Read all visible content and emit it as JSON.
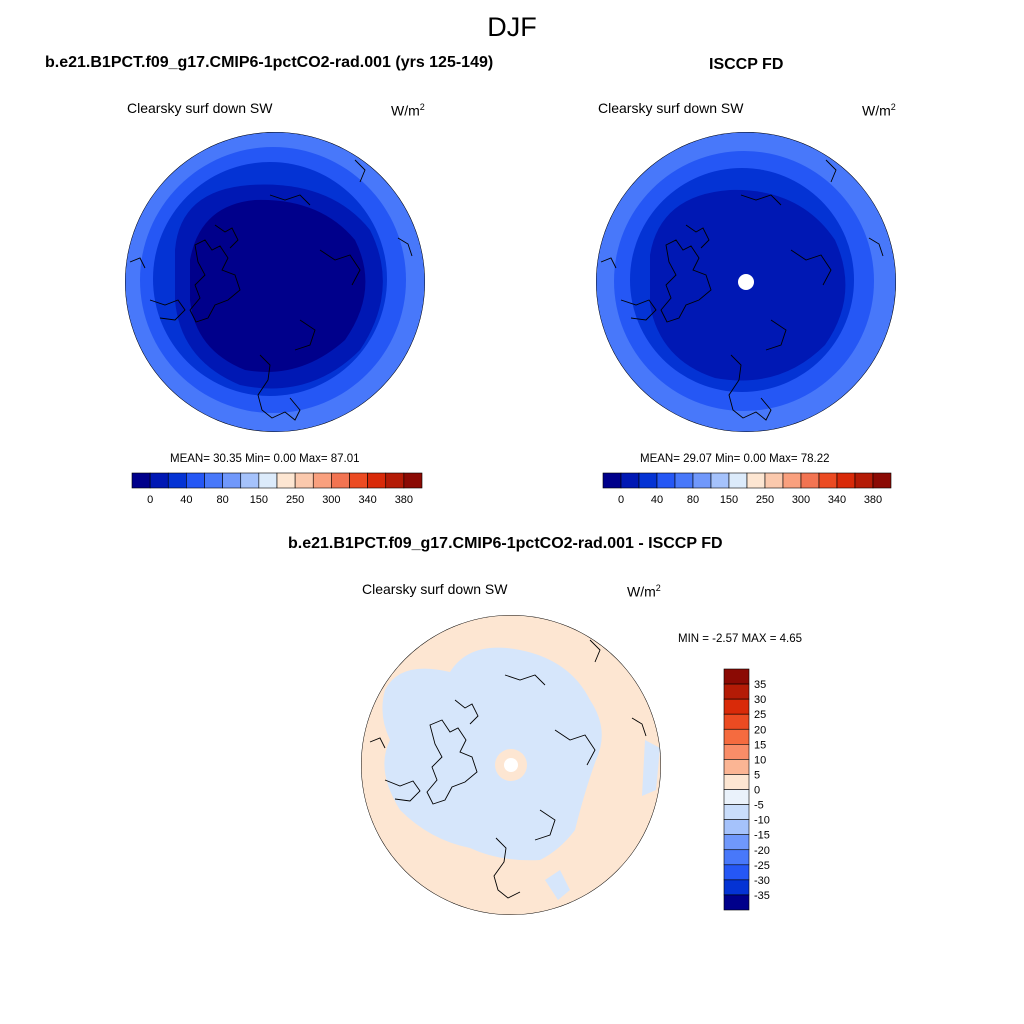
{
  "figure": {
    "season": "DJF"
  },
  "panels": [
    {
      "title": "b.e21.B1PCT.f09_g17.CMIP6-1pctCO2-rad.001 (yrs 125-149)",
      "variable": "Clearsky surf down SW",
      "units_base": "W/m",
      "units_exp": "2",
      "stats": "MEAN=  30.35  Min=   0.00  Max=  87.01"
    },
    {
      "title": "ISCCP FD",
      "variable": "Clearsky surf down SW",
      "units_base": "W/m",
      "units_exp": "2",
      "stats": "MEAN=  29.07  Min=   0.00  Max=  78.22"
    },
    {
      "title": "b.e21.B1PCT.f09_g17.CMIP6-1pctCO2-rad.001 - ISCCP FD",
      "variable": "Clearsky surf down SW",
      "units_base": "W/m",
      "units_exp": "2",
      "stats": "MIN =  -2.57 MAX =   4.65"
    }
  ],
  "chart_data": [
    {
      "type": "heatmap",
      "projection": "north polar stereographic",
      "title": "b.e21.B1PCT.f09_g17.CMIP6-1pctCO2-rad.001 (yrs 125-149)",
      "variable": "Clearsky surf down SW",
      "units": "W/m2",
      "mean": 30.35,
      "min": 0.0,
      "max": 87.01,
      "colorbar": {
        "orientation": "horizontal",
        "levels": [
          0,
          20,
          40,
          60,
          80,
          100,
          120,
          150,
          200,
          250,
          280,
          300,
          320,
          340,
          360,
          380
        ],
        "tick_labels": [
          "0",
          "40",
          "80",
          "150",
          "250",
          "300",
          "340",
          "380"
        ],
        "colors": [
          "#00008b",
          "#0018b4",
          "#0433d4",
          "#2557f5",
          "#4878fa",
          "#7098fb",
          "#a5c2fb",
          "#dcebfb",
          "#fde6d2",
          "#fbc9ad",
          "#f9a07e",
          "#f27452",
          "#ec4b22",
          "#d92a09",
          "#b41b06",
          "#8b0a04"
        ]
      },
      "contours": [
        {
          "range": "0-20",
          "color": "#00008b",
          "extent_deg_from_pole": 35
        },
        {
          "range": "20-40",
          "color": "#0018b4",
          "extent_deg_from_pole": 45
        },
        {
          "range": "40-60",
          "color": "#0433d4",
          "extent_deg_from_pole": 55
        },
        {
          "range": "60-80",
          "color": "#2557f5",
          "extent_deg_from_pole": 63
        },
        {
          "range": "80-100",
          "color": "#4878fa",
          "extent_deg_from_pole": 70
        }
      ]
    },
    {
      "type": "heatmap",
      "projection": "north polar stereographic",
      "title": "ISCCP FD",
      "variable": "Clearsky surf down SW",
      "units": "W/m2",
      "mean": 29.07,
      "min": 0.0,
      "max": 78.22,
      "missing_at_pole": true,
      "colorbar": {
        "orientation": "horizontal",
        "levels": [
          0,
          20,
          40,
          60,
          80,
          100,
          120,
          150,
          200,
          250,
          280,
          300,
          320,
          340,
          360,
          380
        ],
        "tick_labels": [
          "0",
          "40",
          "80",
          "150",
          "250",
          "300",
          "340",
          "380"
        ],
        "colors": [
          "#00008b",
          "#0018b4",
          "#0433d4",
          "#2557f5",
          "#4878fa",
          "#7098fb",
          "#a5c2fb",
          "#dcebfb",
          "#fde6d2",
          "#fbc9ad",
          "#f9a07e",
          "#f27452",
          "#ec4b22",
          "#d92a09",
          "#b41b06",
          "#8b0a04"
        ]
      },
      "contours": [
        {
          "range": "0-20",
          "color": "#0018b4",
          "extent_deg_from_pole": 38
        },
        {
          "range": "20-40",
          "color": "#0433d4",
          "extent_deg_from_pole": 50
        },
        {
          "range": "40-60",
          "color": "#2557f5",
          "extent_deg_from_pole": 60
        },
        {
          "range": "60-80",
          "color": "#4878fa",
          "extent_deg_from_pole": 70
        }
      ]
    },
    {
      "type": "heatmap",
      "projection": "north polar stereographic",
      "title": "b.e21.B1PCT.f09_g17.CMIP6-1pctCO2-rad.001 - ISCCP FD",
      "variable": "Clearsky surf down SW",
      "units": "W/m2",
      "min": -2.57,
      "max": 4.65,
      "colorbar": {
        "orientation": "vertical",
        "levels": [
          -40,
          -35,
          -30,
          -25,
          -20,
          -15,
          -10,
          -5,
          0,
          5,
          10,
          15,
          20,
          25,
          30,
          35,
          40
        ],
        "tick_labels": [
          "35",
          "30",
          "25",
          "20",
          "15",
          "10",
          "5",
          "0",
          "-5",
          "-10",
          "-15",
          "-20",
          "-25",
          "-30",
          "-35"
        ],
        "colors_top_to_bottom": [
          "#8b0a04",
          "#b41b06",
          "#d92a09",
          "#ec4b22",
          "#f56b3f",
          "#f98d68",
          "#fbb594",
          "#fde6d2",
          "#eaf2fb",
          "#c9ddfb",
          "#a5c2fb",
          "#7098fb",
          "#4878fa",
          "#2557f5",
          "#0433d4",
          "#00008b"
        ]
      },
      "regions": [
        {
          "range": "0 to 5",
          "color": "#fde6d2",
          "where": "mid-latitudes and ocean margins"
        },
        {
          "range": "-5 to 0",
          "color": "#d6e6fb",
          "where": "Arctic basin and high-latitude land"
        },
        {
          "range": "missing",
          "color": "#ffffff",
          "where": "north pole"
        }
      ]
    }
  ]
}
